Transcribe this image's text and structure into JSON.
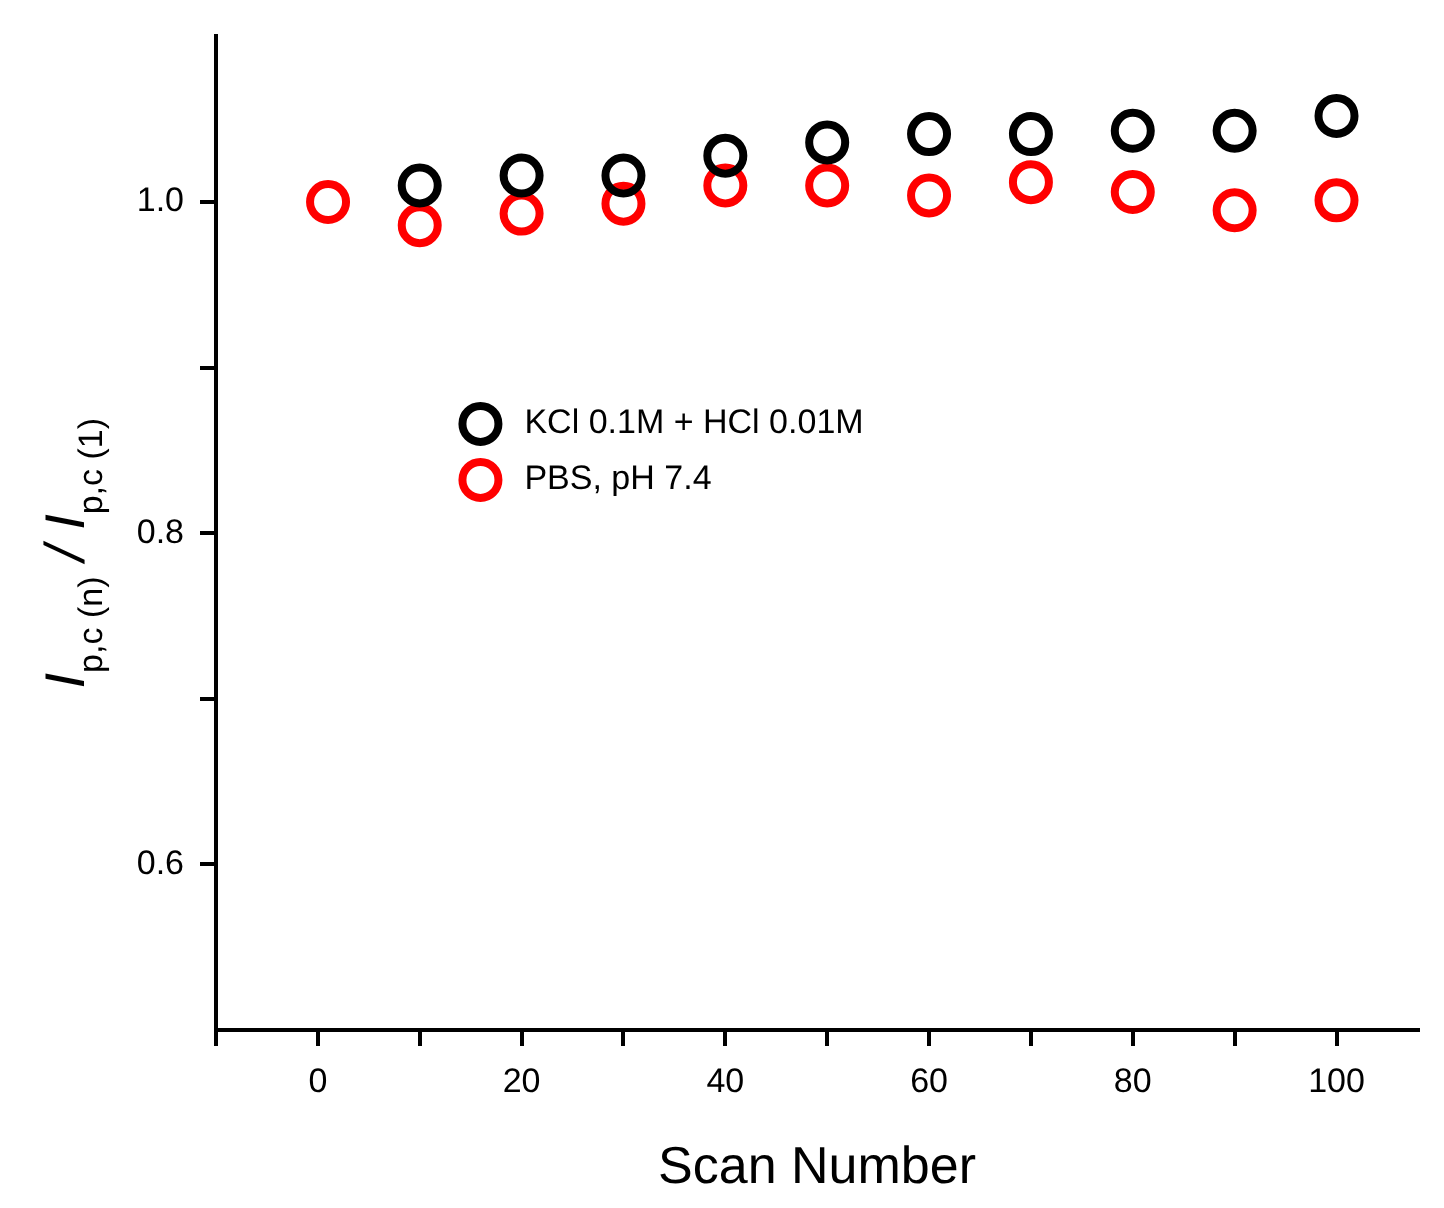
{
  "chart_data": {
    "type": "scatter",
    "xlabel": "Scan Number",
    "ylabel": "I$_{p,c (n)}$ / I$_{p,c (1)}$",
    "xlim": [
      -10,
      108
    ],
    "xticks": [
      {
        "value": -10,
        "label": null
      },
      0,
      {
        "value": 10,
        "label": null
      },
      20,
      {
        "value": 30,
        "label": null
      },
      40,
      {
        "value": 50,
        "label": null
      },
      60,
      {
        "value": 70,
        "label": null
      },
      80,
      {
        "value": 90,
        "label": null
      },
      100
    ],
    "ylim": [
      0.5,
      1.1
    ],
    "yticks": [
      {
        "value": 0.6,
        "label": "0.6"
      },
      {
        "value": 0.7,
        "label": null
      },
      {
        "value": 0.8,
        "label": "0.8"
      },
      {
        "value": 0.9,
        "label": null
      },
      {
        "value": 1.0,
        "label": "1.0"
      }
    ],
    "marker": "circle",
    "grid": false,
    "legend": "top left",
    "series": [
      {
        "name": "KCl 0.1M + HCl 0.01M",
        "color": "#000000",
        "x": [
          10,
          20,
          30,
          40,
          50,
          60,
          70,
          80,
          90,
          100
        ],
        "values": [
          1.01,
          1.016,
          1.016,
          1.028,
          1.036,
          1.041,
          1.041,
          1.043,
          1.043,
          1.052
        ]
      },
      {
        "name": "PBS, pH 7.4",
        "color": "#ff0000",
        "x": [
          1,
          10,
          20,
          30,
          40,
          50,
          60,
          70,
          80,
          90,
          100
        ],
        "values": [
          1.0,
          0.986,
          0.993,
          0.999,
          1.01,
          1.01,
          1.004,
          1.012,
          1.006,
          0.995,
          1.001
        ]
      }
    ]
  }
}
